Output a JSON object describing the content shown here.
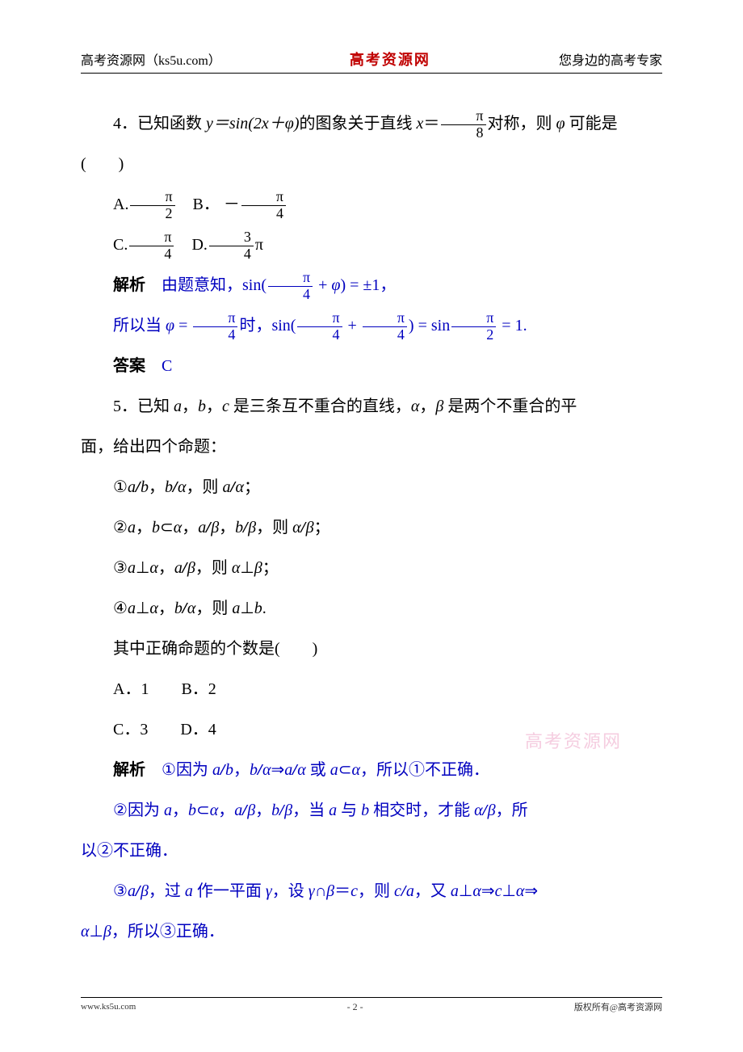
{
  "header": {
    "left": "高考资源网（ks5u.com）",
    "center": "高考资源网",
    "right": "您身边的高考专家"
  },
  "colors": {
    "solution": "#0000bf",
    "brand": "#c00000",
    "text": "#000000",
    "header_text": "#595959",
    "watermark": "#f5cde0"
  },
  "q4": {
    "stem_prefix": "4．已知函数 ",
    "stem_func": "y＝sin(2x＋φ)",
    "stem_mid": "的图象关于直线 ",
    "stem_x": "x＝",
    "frac_pi8_num": "π",
    "frac_pi8_den": "8",
    "stem_suffix": "对称，则 φ 可能是",
    "paren": "(　　)",
    "optA_label": "A.",
    "optA_num": "π",
    "optA_den": "2",
    "optB_label": "B．",
    "optB_sign": "－",
    "optB_num": "π",
    "optB_den": "4",
    "optC_label": "C.",
    "optC_num": "π",
    "optC_den": "4",
    "optD_label": "D.",
    "optD_num": "3",
    "optD_den": "4",
    "optD_after": "π",
    "sol_label": "解析",
    "sol_p1_a": "　由题意知，",
    "sol_p1_b": "sin(",
    "sol_frac1_num": "π",
    "sol_frac1_den": "4",
    "sol_p1_c": " + φ) = ±1，",
    "sol_p2_a": "所以当 φ = ",
    "sol_frac2_num": "π",
    "sol_frac2_den": "4",
    "sol_p2_b": "时，",
    "sol_p2_c": "sin(",
    "sol_frac3_num": "π",
    "sol_frac3_den": "4",
    "sol_plus": " + ",
    "sol_frac4_num": "π",
    "sol_frac4_den": "4",
    "sol_p2_d": ") = sin",
    "sol_frac5_num": "π",
    "sol_frac5_den": "2",
    "sol_p2_e": " = 1.",
    "ans_label": "答案",
    "ans_val": "　C"
  },
  "q5": {
    "stem1": "5．已知 a，b，c 是三条互不重合的直线，α，β 是两个不重合的平",
    "stem2": "面，给出四个命题：",
    "p1": "①a∥b，b∥α，则 a∥α；",
    "p2": "②a，b⊂α，a∥β，b∥β，则 α∥β；",
    "p3": "③a⊥α，a∥β，则 α⊥β；",
    "p4": "④a⊥α，b∥α，则 a⊥b.",
    "ask": "其中正确命题的个数是(　　)",
    "optA": "A．1",
    "optB": "B．2",
    "optC": "C．3",
    "optD": "D．4",
    "sol_label": "解析",
    "sol1": "　①因为 a∥b，b∥α⇒a∥α 或 a⊂α，所以①不正确．",
    "sol2": "②因为 a，b⊂α，a∥β，b∥β，当 a 与 b 相交时，才能 α∥β，所",
    "sol2b": "以②不正确．",
    "sol3": "③a∥β，过 a 作一平面 γ，设 γ∩β＝c，则 c∥a，又 a⊥α⇒c⊥α⇒",
    "sol3b": "α⊥β，所以③正确．"
  },
  "watermark": "高考资源网",
  "footer": {
    "left": "www.ks5u.com",
    "center": "- 2 -",
    "right": "版权所有@高考资源网"
  }
}
